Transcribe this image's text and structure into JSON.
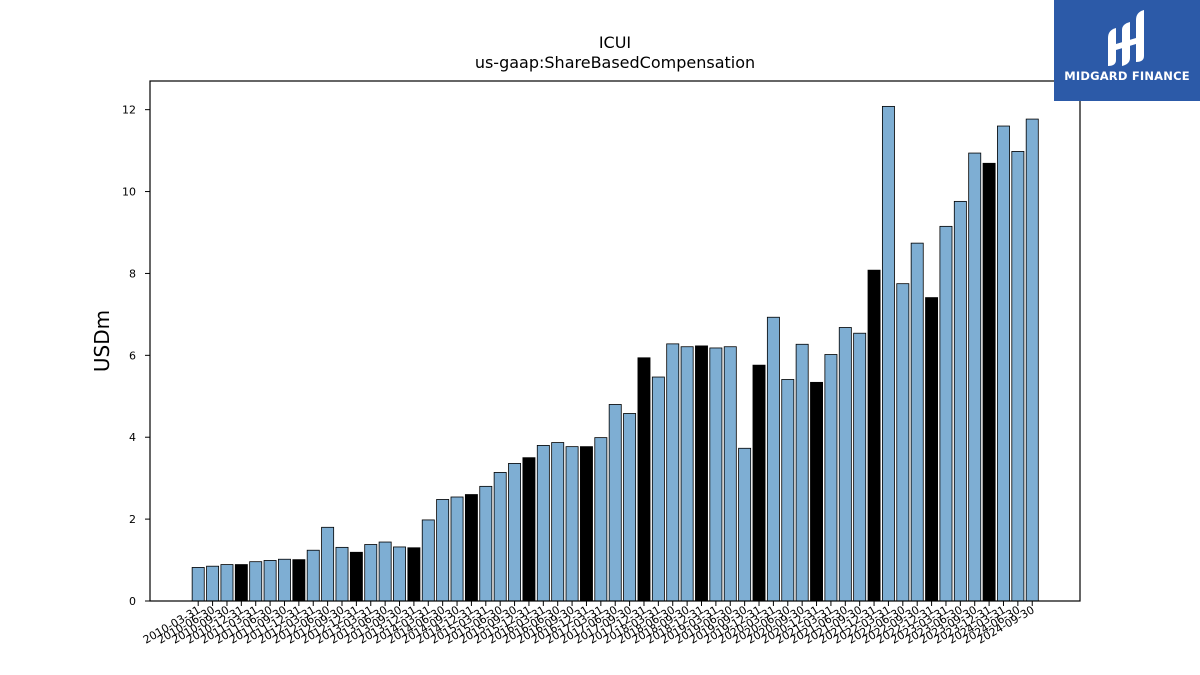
{
  "chart_data": {
    "type": "bar",
    "title": "ICUI",
    "subtitle": "us-gaap:ShareBasedCompensation",
    "xlabel": "",
    "ylabel": "USDm",
    "ylim": [
      0,
      12.7
    ],
    "yticks": [
      0,
      2,
      4,
      6,
      8,
      10,
      12
    ],
    "grid": false,
    "colors": {
      "quarter": "#7eaed3",
      "year_end": "#000000",
      "edge": "#000000"
    },
    "categories": [
      "2010-03-31",
      "2010-06-30",
      "2010-09-30",
      "2010-12-31",
      "2011-03-31",
      "2011-06-30",
      "2011-09-30",
      "2011-12-31",
      "2012-03-31",
      "2012-06-30",
      "2012-09-30",
      "2012-12-31",
      "2013-03-31",
      "2013-06-30",
      "2013-09-30",
      "2013-12-31",
      "2014-03-31",
      "2014-06-30",
      "2014-09-30",
      "2014-12-31",
      "2015-03-31",
      "2015-06-30",
      "2015-09-30",
      "2015-12-31",
      "2016-03-31",
      "2016-06-30",
      "2016-09-30",
      "2016-12-31",
      "2017-03-31",
      "2017-06-30",
      "2017-09-30",
      "2017-12-31",
      "2018-03-31",
      "2018-06-30",
      "2018-09-30",
      "2018-12-31",
      "2019-03-31",
      "2019-06-30",
      "2019-09-30",
      "2019-12-31",
      "2020-03-31",
      "2020-06-30",
      "2020-09-30",
      "2020-12-31",
      "2021-03-31",
      "2021-06-30",
      "2021-09-30",
      "2021-12-31",
      "2022-03-31",
      "2022-06-30",
      "2022-09-30",
      "2022-12-31",
      "2023-03-31",
      "2023-06-30",
      "2023-09-30",
      "2023-12-31",
      "2024-03-31",
      "2024-06-30",
      "2024-09-30"
    ],
    "values": [
      0.82,
      0.85,
      0.89,
      0.89,
      0.96,
      0.99,
      1.02,
      1.01,
      1.24,
      1.8,
      1.31,
      1.19,
      1.38,
      1.44,
      1.32,
      1.3,
      1.98,
      2.48,
      2.54,
      2.6,
      2.8,
      3.14,
      3.36,
      3.5,
      3.8,
      3.87,
      3.77,
      3.77,
      3.99,
      4.8,
      4.58,
      5.94,
      5.47,
      6.28,
      6.21,
      6.23,
      6.18,
      6.21,
      3.73,
      5.76,
      6.93,
      5.41,
      6.27,
      5.34,
      6.02,
      6.68,
      6.54,
      8.08,
      12.08,
      7.75,
      8.74,
      7.41,
      9.15,
      9.76,
      10.94,
      10.69,
      11.6,
      10.98,
      11.77
    ]
  },
  "logo": {
    "name": "MIDGARD FINANCE",
    "icon": "midgard-logo-icon"
  }
}
